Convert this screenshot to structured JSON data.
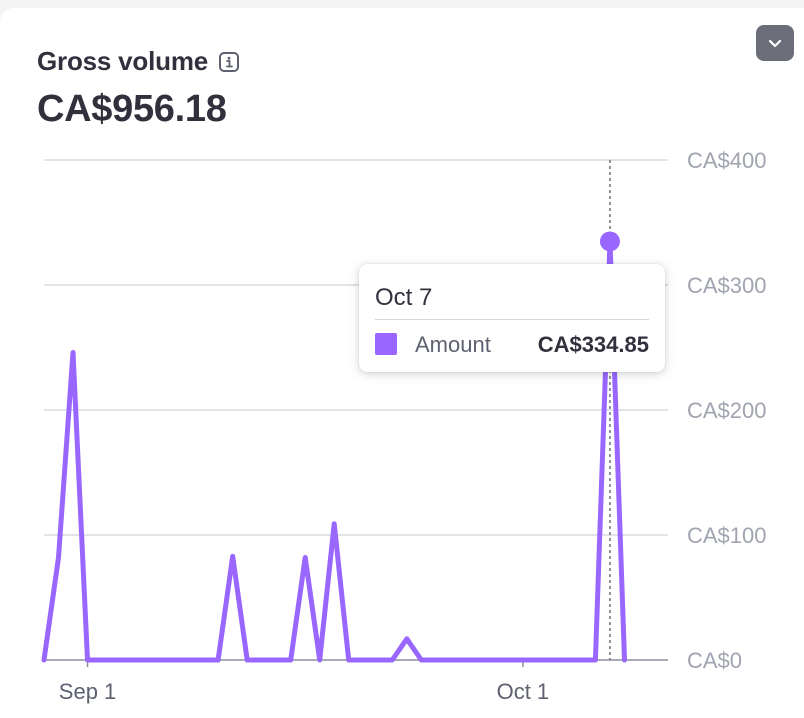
{
  "header": {
    "title": "Gross volume",
    "info_icon": "info-icon",
    "total": "CA$956.18",
    "menu_icon": "chevron-down-icon"
  },
  "colors": {
    "series": "#9966ff",
    "grid": "#d9dbe0",
    "axis_text": "#a0a4b0",
    "baseline": "#8c8f9a"
  },
  "chart_data": {
    "type": "line",
    "title": "Gross volume",
    "y_tick_labels": [
      "CA$0",
      "CA$100",
      "CA$200",
      "CA$300",
      "CA$400"
    ],
    "y_ticks": [
      0,
      100,
      200,
      300,
      400
    ],
    "ylim": [
      0,
      400
    ],
    "x_tick_labels": [
      {
        "label": "Sep 1",
        "index": 3
      },
      {
        "label": "Oct 1",
        "index": 33
      }
    ],
    "x_range": [
      0,
      43
    ],
    "series": [
      {
        "name": "Amount",
        "points": [
          [
            0,
            0
          ],
          [
            1,
            82
          ],
          [
            2,
            246
          ],
          [
            3,
            0
          ],
          [
            4,
            0
          ],
          [
            5,
            0
          ],
          [
            6,
            0
          ],
          [
            7,
            0
          ],
          [
            8,
            0
          ],
          [
            9,
            0
          ],
          [
            10,
            0
          ],
          [
            11,
            0
          ],
          [
            12,
            0
          ],
          [
            13,
            83
          ],
          [
            14,
            0
          ],
          [
            15,
            0
          ],
          [
            16,
            0
          ],
          [
            17,
            0
          ],
          [
            18,
            82
          ],
          [
            19,
            0
          ],
          [
            20,
            109
          ],
          [
            21,
            0
          ],
          [
            22,
            0
          ],
          [
            23,
            0
          ],
          [
            24,
            0
          ],
          [
            25,
            17
          ],
          [
            26,
            0
          ],
          [
            27,
            0
          ],
          [
            28,
            0
          ],
          [
            29,
            0
          ],
          [
            30,
            0
          ],
          [
            31,
            0
          ],
          [
            32,
            0
          ],
          [
            33,
            0
          ],
          [
            34,
            0
          ],
          [
            35,
            0
          ],
          [
            36,
            0
          ],
          [
            37,
            0
          ],
          [
            38,
            0
          ],
          [
            39,
            334.85
          ],
          [
            40,
            0
          ]
        ]
      }
    ],
    "highlight_index": 39,
    "tooltip": {
      "date": "Oct 7",
      "series_name": "Amount",
      "value": "CA$334.85"
    }
  }
}
